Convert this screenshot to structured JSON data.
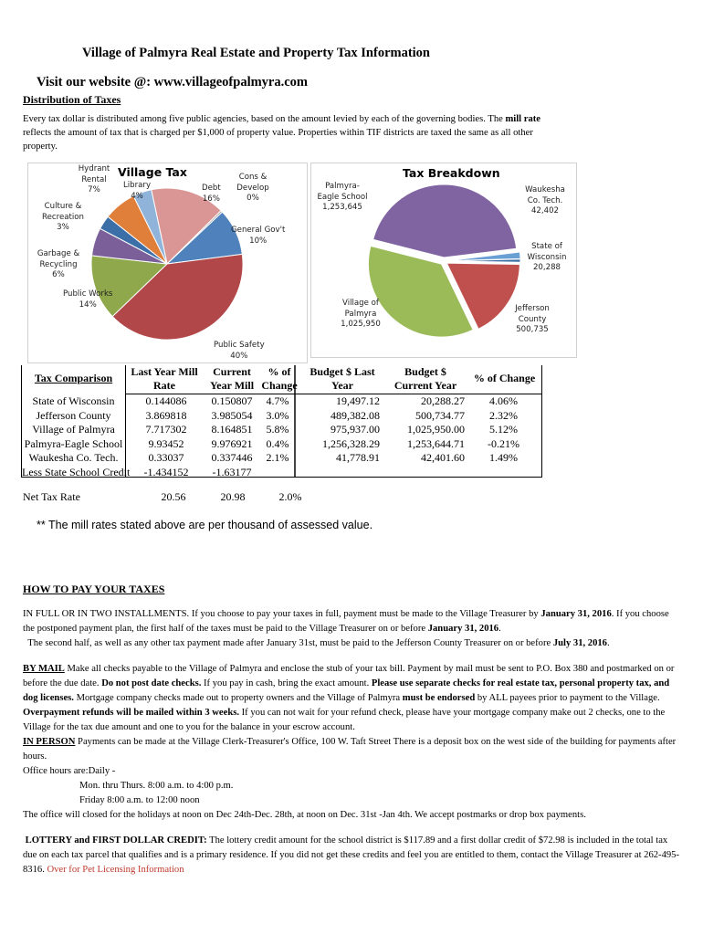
{
  "header": {
    "title": "Village of Palmyra Real Estate and Property Tax Information",
    "website": "Visit our website @: www.villageofpalmyra.com",
    "distribution_heading": "Distribution of Taxes",
    "intro_1": "Every tax dollar is distributed among five public agencies, based on the amount levied by each of the governing bodies. The ",
    "intro_bold": "mill rate",
    "intro_2": " reflects the amount of tax that is charged per $1,000 of property value.  Properties within TIF districts are taxed the same as all other property."
  },
  "chart_data": [
    {
      "type": "pie",
      "title": "Village Tax",
      "slices": [
        {
          "label": "Debt",
          "value": 16,
          "display": "16%",
          "color": "#d99694"
        },
        {
          "label": "Cons & Develop",
          "value": 0.4,
          "display": "0%",
          "color": "#a6a6a6"
        },
        {
          "label": "General Gov't",
          "value": 10,
          "display": "10%",
          "color": "#4f81bd"
        },
        {
          "label": "Public Safety",
          "value": 40,
          "display": "40%",
          "color": "#b2474a"
        },
        {
          "label": "Public Works",
          "value": 14,
          "display": "14%",
          "color": "#8ea84b"
        },
        {
          "label": "Garbage & Recycling",
          "value": 6,
          "display": "6%",
          "color": "#7a5f98"
        },
        {
          "label": "Culture & Recreation",
          "value": 3,
          "display": "3%",
          "color": "#3c6ea8"
        },
        {
          "label": "Hydrant Rental",
          "value": 7,
          "display": "7%",
          "color": "#e07f3a"
        },
        {
          "label": "Library",
          "value": 4,
          "display": "4%",
          "color": "#8fb3d9"
        }
      ]
    },
    {
      "type": "pie",
      "title": "Tax Breakdown",
      "slices": [
        {
          "label": "Waukesha Co. Tech.",
          "value": 42402,
          "display": "42,402",
          "color": "#6a9fd4"
        },
        {
          "label": "State of Wisconsin",
          "value": 20288,
          "display": "20,288",
          "color": "#3a6ea5"
        },
        {
          "label": "Jefferson County",
          "value": 500735,
          "display": "500,735",
          "color": "#c0504d"
        },
        {
          "label": "Village of Palmyra",
          "value": 1025950,
          "display": "1,025,950",
          "color": "#9bbb59"
        },
        {
          "label": "Palmyra-Eagle School",
          "value": 1253645,
          "display": "1,253,645",
          "color": "#8064a2"
        }
      ]
    }
  ],
  "table": {
    "heading": "Tax Comparison",
    "col_headers": [
      "Last Year Mill Rate",
      "Current Year Mill",
      "% of Change",
      "Budget $ Last Year",
      "Budget $ Current Year",
      "% of Change"
    ],
    "rows": [
      {
        "name": "State of Wisconsin",
        "c": [
          "0.144086",
          "0.150807",
          "4.7%",
          "19,497.12",
          "20,288.27",
          "4.06%"
        ]
      },
      {
        "name": "Jefferson County",
        "c": [
          "3.869818",
          "3.985054",
          "3.0%",
          "489,382.08",
          "500,734.77",
          "2.32%"
        ]
      },
      {
        "name": "Village of Palmyra",
        "c": [
          "7.717302",
          "8.164851",
          "5.8%",
          "975,937.00",
          "1,025,950.00",
          "5.12%"
        ]
      },
      {
        "name": "Palmyra-Eagle School",
        "c": [
          "9.93452",
          "9.976921",
          "0.4%",
          "1,256,328.29",
          "1,253,644.71",
          "-0.21%"
        ]
      },
      {
        "name": "Waukesha Co. Tech.",
        "c": [
          "0.33037",
          "0.337446",
          "2.1%",
          "41,778.91",
          "42,401.60",
          "1.49%"
        ]
      },
      {
        "name": "Less State School Credit",
        "c": [
          "-1.434152",
          "-1.63177",
          "",
          "",
          "",
          ""
        ]
      }
    ],
    "net": {
      "name": "Net Tax Rate",
      "c": [
        "20.56",
        "20.98",
        "2.0%"
      ]
    },
    "note": "** The mill rates stated above are per thousand of assessed value."
  },
  "howto": {
    "heading": "HOW TO PAY YOUR TAXES",
    "p1a": "IN FULL OR IN TWO INSTALLMENTS.  If you choose to pay your taxes in full, payment  must be made to the Village Treasurer by ",
    "p1b": "January 31, 2016",
    "p1c": ".  If you choose the postponed payment plan, the first half of the taxes must be paid to the Village Treasurer on or before ",
    "p1d": "January 31, 2016",
    "p1e": ".",
    "p2a": "The second half, as well as any other tax payment made after January 31st, must be paid to the Jefferson County Treasurer on or before ",
    "p2b": "July 31, 2016",
    "p2c": ".",
    "mail_head": "BY MAIL",
    "mail_1": " Make all checks payable to the Village of Palmyra and enclose the stub of your tax bill. Payment by mail must be sent to P.O. Box 380 and postmarked on or before the due date. ",
    "mail_2": "Do not post date checks.",
    "mail_3": " If you pay in cash, bring the exact amount.   ",
    "mail_4": "Please use separate checks for real estate tax, personal property tax, and dog licenses.",
    "mail_5": " Mortgage company checks made out to property owners and  the Village of Palmyra ",
    "mail_6": "must be endorsed",
    "mail_7": " by ALL payees prior to payment to the Village. ",
    "mail_8": "Overpayment refunds will be mailed within 3 weeks.",
    "mail_9": " If you can not wait for your refund check, please have your mortgage company make out 2 checks, one to the Village for the tax due amount and one to you for the balance in your escrow account.",
    "person_head": "IN PERSON",
    "person_1": "  Payments can be made at the Village Clerk-Treasurer's Office, 100 W. Taft Street There is a deposit box on the west side of the building for payments after hours.",
    "hours_label": "Office hours are:Daily -",
    "hours_1": "Mon. thru Thurs.  8:00 a.m. to 4:00 p.m.",
    "hours_2": "Friday  8:00 a.m. to 12:00 noon",
    "holiday": "The office will closed for the holidays at noon on Dec 24th-Dec. 28th, at noon on Dec. 31st -Jan 4th.  We accept postmarks or drop box payments.",
    "lottery_head": "LOTTERY  and FIRST DOLLAR CREDIT:",
    "lottery_1": "  The lottery credit amount for the school district is $117.89 and a first dollar credit of $72.98 is included in the total tax due on each tax parcel that qualifies and is a primary residence.  If you did not get these credits and feel you are entitled to them, contact the Village Treasurer at 262-495-8316.  ",
    "lottery_link": "Over for Pet Licensing Information"
  }
}
